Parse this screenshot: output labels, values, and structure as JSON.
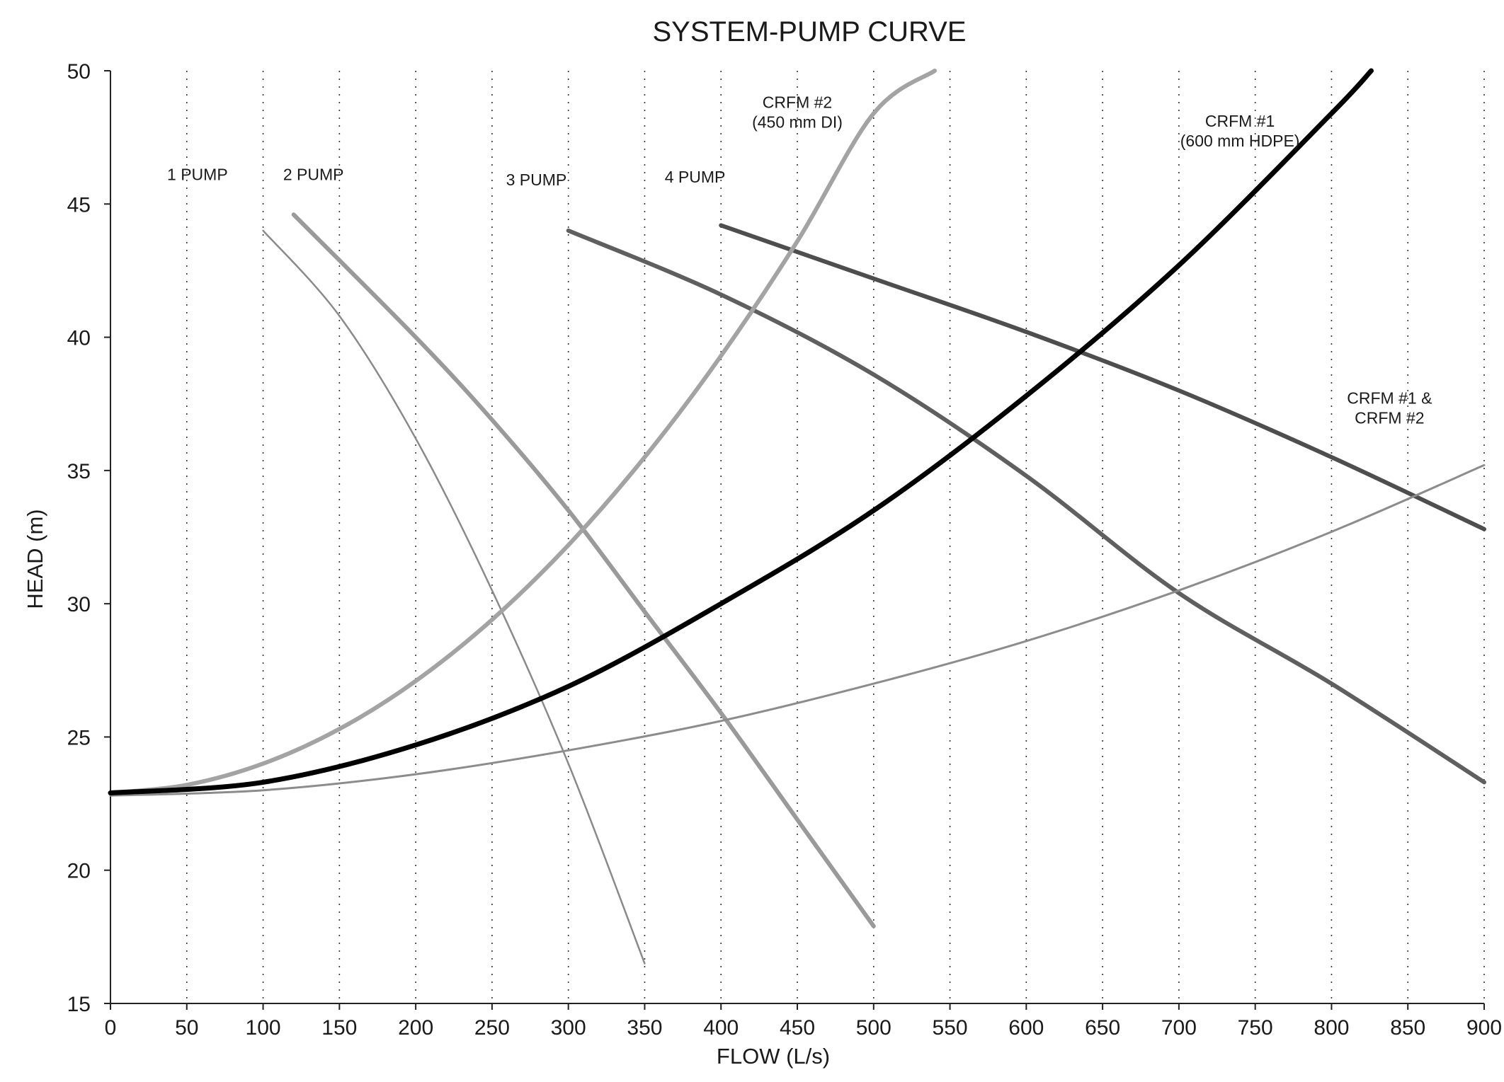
{
  "chart_data": {
    "type": "line",
    "title": "SYSTEM-PUMP CURVE",
    "xlabel": "FLOW (L/s)",
    "ylabel": "HEAD (m)",
    "xlim": [
      0,
      900
    ],
    "ylim": [
      15,
      50
    ],
    "x_ticks": [
      0,
      50,
      100,
      150,
      200,
      250,
      300,
      350,
      400,
      450,
      500,
      550,
      600,
      650,
      700,
      750,
      800,
      850,
      900
    ],
    "y_ticks": [
      15,
      20,
      25,
      30,
      35,
      40,
      45,
      50
    ],
    "grid": "vertical dotted",
    "legend": "none",
    "series": [
      {
        "name": "1 PUMP",
        "kind": "pump",
        "color": "#8a8a8a",
        "width": 2.5,
        "x": [
          100,
          150,
          200,
          250,
          300,
          350
        ],
        "y": [
          44.0,
          40.8,
          36.2,
          30.5,
          24.0,
          16.5
        ]
      },
      {
        "name": "2 PUMP",
        "kind": "pump",
        "color": "#9a9a9a",
        "width": 6,
        "x": [
          120,
          200,
          250,
          300,
          350,
          400,
          450,
          500
        ],
        "y": [
          44.6,
          40.0,
          36.9,
          33.5,
          29.7,
          25.9,
          21.9,
          17.9
        ]
      },
      {
        "name": "3 PUMP",
        "kind": "pump",
        "color": "#5f5f5f",
        "width": 6,
        "x": [
          300,
          400,
          500,
          600,
          700,
          800,
          900
        ],
        "y": [
          44.0,
          41.6,
          38.6,
          34.8,
          30.4,
          27.0,
          23.3
        ]
      },
      {
        "name": "4 PUMP",
        "kind": "pump",
        "color": "#4e4e4e",
        "width": 6,
        "x": [
          400,
          500,
          600,
          700,
          800,
          900
        ],
        "y": [
          44.2,
          42.2,
          40.2,
          38.0,
          35.5,
          32.8
        ]
      },
      {
        "name": "CRFM #2 (450 mm DI)",
        "kind": "system",
        "color": "#a3a3a3",
        "width": 6,
        "x": [
          0,
          50,
          100,
          150,
          200,
          250,
          300,
          350,
          400,
          450,
          500,
          540
        ],
        "y": [
          22.9,
          23.2,
          24.0,
          25.3,
          27.1,
          29.4,
          32.2,
          35.5,
          39.3,
          43.6,
          48.4,
          50.0
        ]
      },
      {
        "name": "CRFM #1 (600 mm HDPE)",
        "kind": "system",
        "color": "#000000",
        "width": 7,
        "x": [
          0,
          100,
          200,
          300,
          400,
          500,
          600,
          700,
          800,
          826
        ],
        "y": [
          22.9,
          23.3,
          24.7,
          26.9,
          30.0,
          33.5,
          37.8,
          42.7,
          48.4,
          50.0
        ]
      },
      {
        "name": "CRFM #1 & CRFM #2",
        "kind": "system",
        "color": "#8c8c8c",
        "width": 3,
        "x": [
          0,
          100,
          200,
          300,
          400,
          500,
          600,
          700,
          800,
          900
        ],
        "y": [
          22.8,
          23.0,
          23.6,
          24.5,
          25.6,
          27.0,
          28.6,
          30.5,
          32.7,
          35.2
        ]
      }
    ],
    "annotations": [
      {
        "lines": [
          "1 PUMP"
        ],
        "x": 57,
        "y": 45.9
      },
      {
        "lines": [
          "2 PUMP"
        ],
        "x": 133,
        "y": 45.9
      },
      {
        "lines": [
          "3 PUMP"
        ],
        "x": 279,
        "y": 45.7
      },
      {
        "lines": [
          "4 PUMP"
        ],
        "x": 383,
        "y": 45.8
      },
      {
        "lines": [
          "CRFM #2",
          "(450 mm DI)"
        ],
        "x": 450,
        "y": 48.6
      },
      {
        "lines": [
          "CRFM #1",
          "(600 mm HDPE)"
        ],
        "x": 740,
        "y": 47.9
      },
      {
        "lines": [
          "CRFM #1 &",
          "CRFM #2"
        ],
        "x": 838,
        "y": 37.5
      }
    ]
  }
}
